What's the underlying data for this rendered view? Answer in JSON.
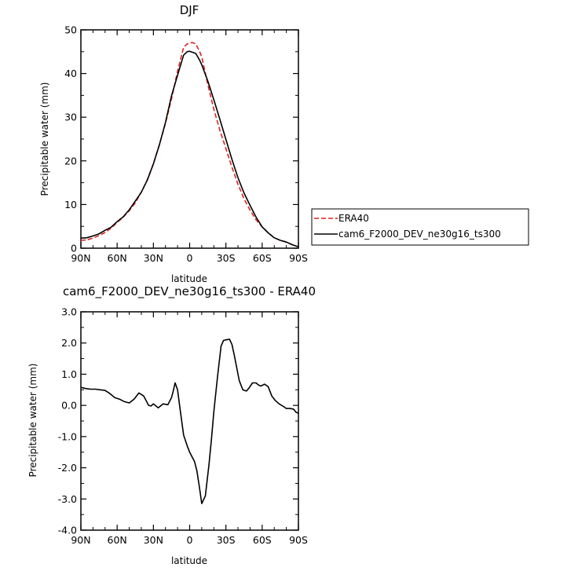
{
  "chart_data": [
    {
      "type": "line",
      "title": "DJF",
      "xlabel": "latitude",
      "ylabel": "Precipitable water (mm)",
      "xlim": [
        90,
        -90
      ],
      "ylim": [
        0,
        50
      ],
      "xticks": [
        90,
        60,
        30,
        0,
        -30,
        -60,
        -90
      ],
      "xticklabels": [
        "90N",
        "60N",
        "30N",
        "0",
        "30S",
        "60S",
        "90S"
      ],
      "yticks": [
        0,
        10,
        20,
        30,
        40,
        50
      ],
      "yticklabels": [
        "0",
        "10",
        "20",
        "30",
        "40",
        "50"
      ],
      "legend": {
        "placement": "outside-right",
        "entries": [
          "ERA40",
          "cam6_F2000_DEV_ne30g16_ts300"
        ]
      },
      "series": [
        {
          "name": "ERA40",
          "color": "#e02020",
          "dash": "dashed",
          "x": [
            90,
            85,
            80,
            75,
            70,
            65,
            60,
            55,
            50,
            45,
            40,
            35,
            30,
            25,
            20,
            15,
            10,
            5,
            2,
            0,
            -2,
            -5,
            -8,
            -10,
            -15,
            -20,
            -25,
            -30,
            -35,
            -40,
            -45,
            -50,
            -55,
            -60,
            -65,
            -70,
            -75,
            -80,
            -85,
            -90
          ],
          "y": [
            1.8,
            1.9,
            2.3,
            2.9,
            3.6,
            4.6,
            5.9,
            7.1,
            8.6,
            10.4,
            12.8,
            15.7,
            19.3,
            23.7,
            28.6,
            34.2,
            40.5,
            46.0,
            46.8,
            46.9,
            47.1,
            46.8,
            45.2,
            43.8,
            37.5,
            31.8,
            27.0,
            22.8,
            18.5,
            14.6,
            11.3,
            8.7,
            6.5,
            4.9,
            3.5,
            2.4,
            1.8,
            1.4,
            0.8,
            0.3
          ]
        },
        {
          "name": "cam6_F2000_DEV_ne30g16_ts300",
          "color": "#000000",
          "dash": "solid",
          "x": [
            90,
            85,
            80,
            75,
            70,
            65,
            60,
            55,
            50,
            45,
            40,
            35,
            30,
            25,
            20,
            15,
            10,
            5,
            2,
            0,
            -2,
            -5,
            -8,
            -10,
            -15,
            -20,
            -25,
            -30,
            -35,
            -40,
            -45,
            -50,
            -55,
            -60,
            -65,
            -70,
            -75,
            -80,
            -85,
            -90
          ],
          "y": [
            2.3,
            2.4,
            2.8,
            3.3,
            4.1,
            4.8,
            6.1,
            7.2,
            8.8,
            10.8,
            12.8,
            15.6,
            19.3,
            23.7,
            28.8,
            34.9,
            39.6,
            44.2,
            45.0,
            45.1,
            44.9,
            44.6,
            43.2,
            42.0,
            38.3,
            34.0,
            29.5,
            24.9,
            20.3,
            16.1,
            12.6,
            9.8,
            7.1,
            4.9,
            3.5,
            2.4,
            1.8,
            1.4,
            0.8,
            0.3
          ]
        }
      ]
    },
    {
      "type": "line",
      "title": "cam6_F2000_DEV_ne30g16_ts300 - ERA40",
      "xlabel": "latitude",
      "ylabel": "Precipitable water (mm)",
      "xlim": [
        90,
        -90
      ],
      "ylim": [
        -4.0,
        3.0
      ],
      "xticks": [
        90,
        60,
        30,
        0,
        -30,
        -60,
        -90
      ],
      "xticklabels": [
        "90N",
        "60N",
        "30N",
        "0",
        "30S",
        "60S",
        "90S"
      ],
      "yticks": [
        -4,
        -3,
        -2,
        -1,
        0,
        1,
        2,
        3
      ],
      "yticklabels": [
        "-4.0",
        "-3.0",
        "-2.0",
        "-1.0",
        "0.0",
        "1.0",
        "2.0",
        "3.0"
      ],
      "series": [
        {
          "color": "#000000",
          "dash": "solid",
          "x": [
            90,
            86,
            82,
            78,
            74,
            70,
            66,
            62,
            58,
            54,
            50,
            46,
            44,
            42,
            38,
            34,
            32,
            30,
            26,
            22,
            18,
            15,
            14,
            12,
            10,
            8,
            5,
            2,
            0,
            -2,
            -4,
            -6,
            -8,
            -10,
            -13,
            -16,
            -18,
            -20,
            -23,
            -26,
            -28,
            -30,
            -33,
            -35,
            -37,
            -39,
            -41,
            -44,
            -47,
            -49,
            -52,
            -55,
            -57,
            -59,
            -62,
            -65,
            -68,
            -71,
            -74,
            -77,
            -80,
            -83,
            -86,
            -88,
            -90
          ],
          "y": [
            0.58,
            0.54,
            0.52,
            0.52,
            0.5,
            0.48,
            0.38,
            0.25,
            0.2,
            0.12,
            0.08,
            0.2,
            0.3,
            0.4,
            0.3,
            0.0,
            -0.02,
            0.05,
            -0.08,
            0.05,
            0.02,
            0.25,
            0.4,
            0.72,
            0.5,
            -0.1,
            -0.95,
            -1.3,
            -1.5,
            -1.65,
            -1.8,
            -2.1,
            -2.6,
            -3.15,
            -2.9,
            -1.9,
            -1.1,
            -0.2,
            0.9,
            1.9,
            2.08,
            2.1,
            2.12,
            1.95,
            1.6,
            1.2,
            0.8,
            0.5,
            0.46,
            0.55,
            0.72,
            0.72,
            0.65,
            0.62,
            0.68,
            0.6,
            0.3,
            0.15,
            0.05,
            -0.02,
            -0.1,
            -0.1,
            -0.12,
            -0.22,
            -0.25
          ]
        }
      ]
    }
  ]
}
